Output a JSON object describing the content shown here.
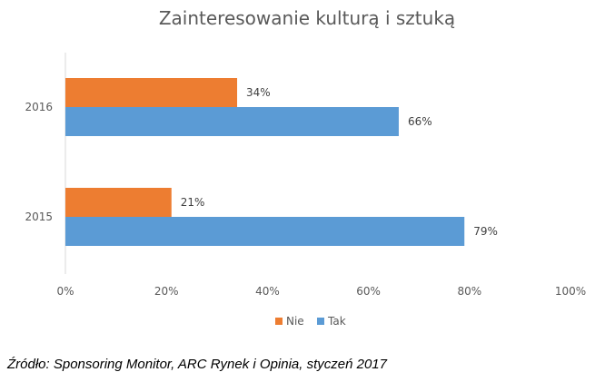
{
  "chart_data": {
    "type": "bar",
    "orientation": "horizontal",
    "title": "Zainteresowanie kulturą i sztuką",
    "categories": [
      "2016",
      "2015"
    ],
    "series": [
      {
        "name": "Nie",
        "values": [
          34,
          21
        ],
        "color": "#ED7D31"
      },
      {
        "name": "Tak",
        "values": [
          66,
          79
        ],
        "color": "#5B9BD5"
      }
    ],
    "value_ticks": [
      "0%",
      "20%",
      "40%",
      "60%",
      "80%",
      "100%"
    ],
    "xlim": [
      0,
      100
    ],
    "value_suffix": "%",
    "legend_position": "bottom",
    "grid": false
  },
  "source_note": "Źródło: Sponsoring Monitor, ARC Rynek i Opinia, styczeń 2017"
}
